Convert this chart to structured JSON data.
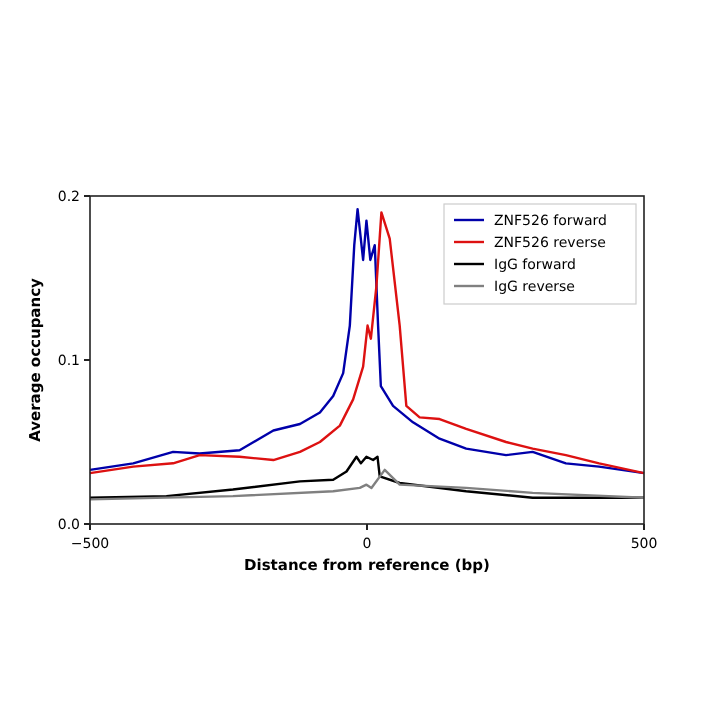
{
  "chart_data": {
    "type": "line",
    "xlabel": "Distance from reference (bp)",
    "ylabel": "Average occupancy",
    "xlim": [
      -500,
      500
    ],
    "xticks": [
      {
        "value": -500,
        "label": "−500"
      },
      0,
      500
    ],
    "ylim": [
      0,
      0.2
    ],
    "yticks": [
      {
        "value": 0,
        "label": "0.0"
      },
      0.1,
      0.2
    ],
    "legend": "top right",
    "series": [
      {
        "name": "ZNF526 forward",
        "color": "#0000aa",
        "x": [
          -500,
          -422,
          -350,
          -302,
          -230,
          -169,
          -121,
          -85,
          -61,
          -43,
          -31,
          -23,
          -17,
          -7,
          -1,
          6,
          14,
          20,
          25,
          47,
          83,
          131,
          179,
          251,
          299,
          359,
          419,
          500
        ],
        "values": [
          0.033,
          0.037,
          0.044,
          0.043,
          0.045,
          0.057,
          0.061,
          0.068,
          0.078,
          0.092,
          0.121,
          0.17,
          0.192,
          0.161,
          0.185,
          0.161,
          0.17,
          0.121,
          0.084,
          0.072,
          0.062,
          0.052,
          0.046,
          0.042,
          0.044,
          0.037,
          0.035,
          0.031
        ]
      },
      {
        "name": "ZNF526 reverse",
        "color": "#dd1111",
        "x": [
          -500,
          -422,
          -350,
          -302,
          -230,
          -169,
          -121,
          -85,
          -49,
          -25,
          -7,
          1,
          7,
          17,
          26,
          41,
          59,
          71,
          95,
          131,
          179,
          251,
          299,
          359,
          419,
          500
        ],
        "values": [
          0.031,
          0.035,
          0.037,
          0.042,
          0.041,
          0.039,
          0.044,
          0.05,
          0.06,
          0.076,
          0.096,
          0.121,
          0.113,
          0.145,
          0.19,
          0.174,
          0.121,
          0.072,
          0.065,
          0.064,
          0.058,
          0.05,
          0.046,
          0.042,
          0.037,
          0.031
        ]
      },
      {
        "name": "IgG forward",
        "color": "#000000",
        "x": [
          -500,
          -362,
          -242,
          -121,
          -61,
          -37,
          -19,
          -11,
          -1,
          11,
          19,
          23,
          59,
          179,
          299,
          500
        ],
        "values": [
          0.016,
          0.017,
          0.021,
          0.026,
          0.027,
          0.032,
          0.041,
          0.037,
          0.041,
          0.039,
          0.041,
          0.029,
          0.025,
          0.02,
          0.016,
          0.016
        ]
      },
      {
        "name": "IgG reverse",
        "color": "#808080",
        "x": [
          -500,
          -242,
          -61,
          -13,
          -1,
          8,
          32,
          59,
          179,
          299,
          500
        ],
        "values": [
          0.015,
          0.017,
          0.02,
          0.022,
          0.024,
          0.022,
          0.033,
          0.024,
          0.022,
          0.019,
          0.016
        ]
      }
    ]
  }
}
